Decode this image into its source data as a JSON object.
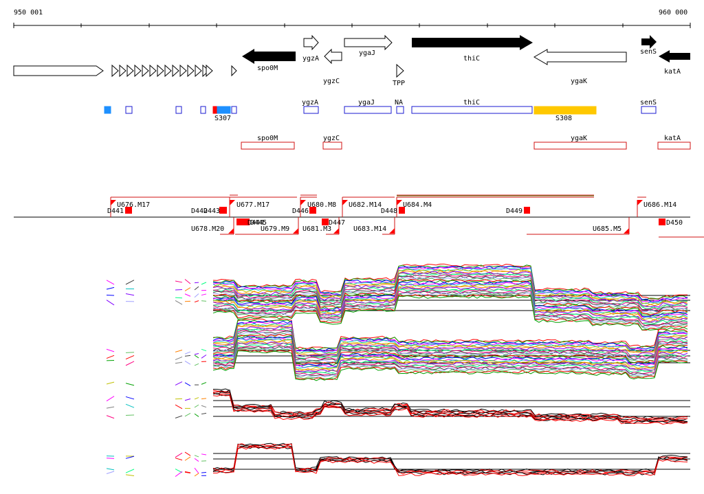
{
  "ruler": {
    "start_label": "950 001",
    "end_label": "960 000"
  },
  "colors": {
    "gene_outline": "#000000",
    "gene_filled": "#000000",
    "blue_box": "#1a1ad0",
    "blue_fill": "#1e90ff",
    "red_box": "#d01010",
    "red_fill": "#ff0000",
    "yellow_fill": "#ffc800",
    "line_red": "#ff0000"
  },
  "genes": {
    "spo0M": "spo0M",
    "ygzA": "ygzA",
    "ygaJ": "ygaJ",
    "ygzC": "ygzC",
    "thiC": "thiC",
    "tpp": "TPP",
    "ygaK": "ygaK",
    "senS": "senS",
    "katA": "katA"
  },
  "blue_track": {
    "S307": "S307",
    "ygzA": "ygzA",
    "ygaJ": "ygaJ",
    "NA": "NA",
    "thiC": "thiC",
    "S308": "S308",
    "senS": "senS"
  },
  "red_track": {
    "spo0M": "spo0M",
    "ygzC": "ygzC",
    "ygaK": "ygaK",
    "katA": "katA"
  },
  "segments_upper": {
    "U676": "U676.M17",
    "D441": "D441",
    "D442": "D442",
    "D443": "D443",
    "U677": "U677.M17",
    "D446": "D446",
    "U680": "U680.M8",
    "U682": "U682.M14",
    "D448": "D448",
    "U684": "U684.M4",
    "D449": "D449",
    "U686": "U686.M14"
  },
  "segments_lower": {
    "U678": "U678.M20",
    "D444": "D444",
    "D445": "D445",
    "U679": "U679.M9",
    "D447": "D447",
    "U681": "U681.M3",
    "U683": "U683.M14",
    "U685": "U685.M5",
    "D450": "D450"
  }
}
